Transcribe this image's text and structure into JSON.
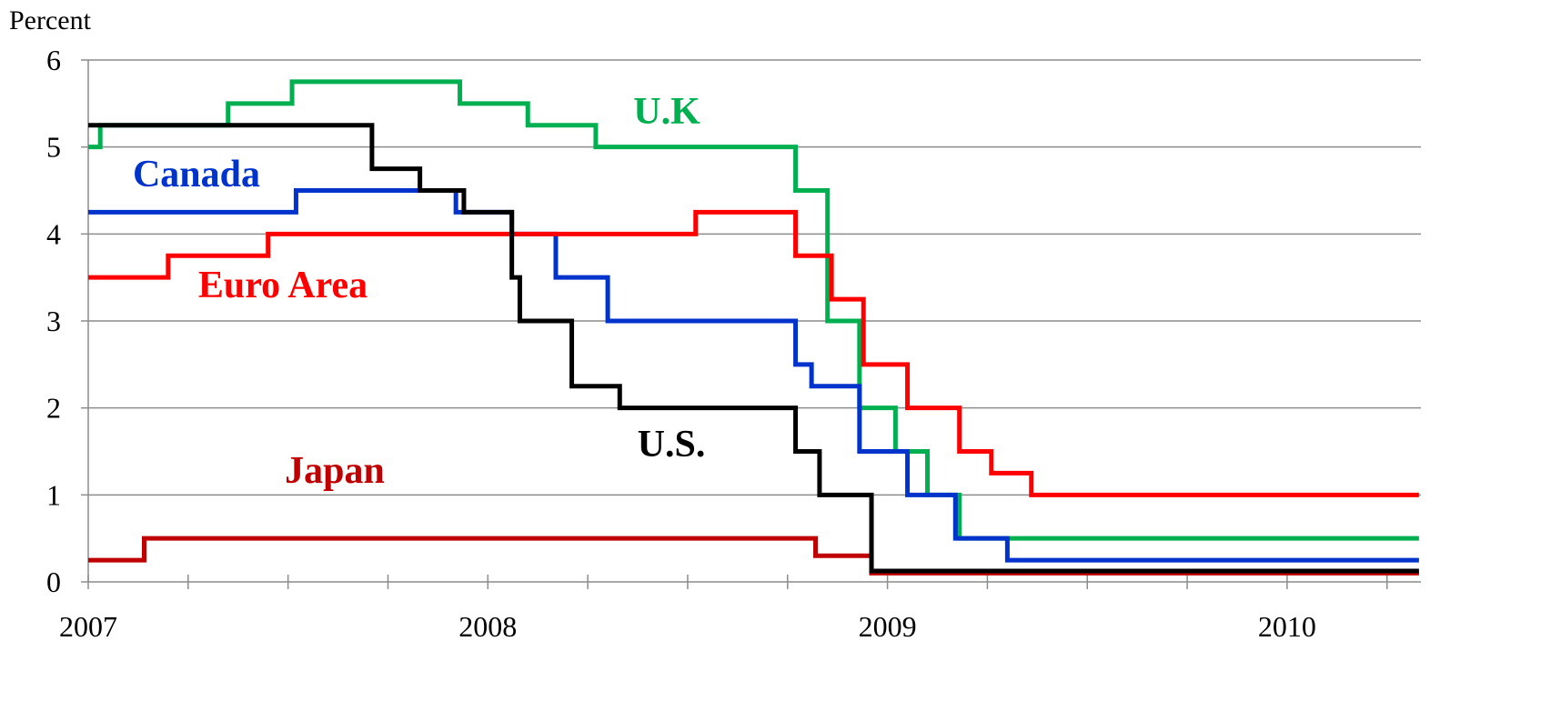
{
  "chart_data": {
    "type": "line",
    "title": "",
    "ylabel": "Percent",
    "xlabel": "",
    "ylim": [
      0,
      6
    ],
    "xlim": [
      2007,
      2010.33
    ],
    "y_ticks": [
      "0",
      "1",
      "2",
      "3",
      "4",
      "5",
      "6"
    ],
    "x_tick_labels": [
      "2007",
      "2008",
      "2009",
      "2010"
    ],
    "grid": "horizontal",
    "step": true,
    "series": [
      {
        "name": "U.S.",
        "color": "#000000",
        "points": [
          [
            2007.0,
            5.25
          ],
          [
            2007.71,
            4.75
          ],
          [
            2007.83,
            4.5
          ],
          [
            2007.94,
            4.25
          ],
          [
            2008.06,
            3.5
          ],
          [
            2008.08,
            3.0
          ],
          [
            2008.21,
            2.25
          ],
          [
            2008.33,
            2.0
          ],
          [
            2008.77,
            1.5
          ],
          [
            2008.83,
            1.0
          ],
          [
            2008.96,
            0.125
          ],
          [
            2010.33,
            0.125
          ]
        ]
      },
      {
        "name": "U.K",
        "color": "#00b050",
        "points": [
          [
            2007.0,
            5.0
          ],
          [
            2007.03,
            5.25
          ],
          [
            2007.35,
            5.5
          ],
          [
            2007.51,
            5.75
          ],
          [
            2007.93,
            5.5
          ],
          [
            2008.1,
            5.25
          ],
          [
            2008.27,
            5.0
          ],
          [
            2008.77,
            4.5
          ],
          [
            2008.85,
            3.0
          ],
          [
            2008.93,
            2.0
          ],
          [
            2009.02,
            1.5
          ],
          [
            2009.1,
            1.0
          ],
          [
            2009.18,
            0.5
          ],
          [
            2010.33,
            0.5
          ]
        ]
      },
      {
        "name": "Canada",
        "color": "#0033cc",
        "points": [
          [
            2007.0,
            4.25
          ],
          [
            2007.52,
            4.5
          ],
          [
            2007.92,
            4.25
          ],
          [
            2008.06,
            4.0
          ],
          [
            2008.17,
            3.5
          ],
          [
            2008.3,
            3.0
          ],
          [
            2008.77,
            2.5
          ],
          [
            2008.81,
            2.25
          ],
          [
            2008.93,
            1.5
          ],
          [
            2009.05,
            1.0
          ],
          [
            2009.17,
            0.5
          ],
          [
            2009.3,
            0.25
          ],
          [
            2010.33,
            0.25
          ]
        ]
      },
      {
        "name": "Euro Area",
        "color": "#ff0000",
        "points": [
          [
            2007.0,
            3.5
          ],
          [
            2007.2,
            3.75
          ],
          [
            2007.45,
            4.0
          ],
          [
            2008.52,
            4.25
          ],
          [
            2008.77,
            3.75
          ],
          [
            2008.86,
            3.25
          ],
          [
            2008.94,
            2.5
          ],
          [
            2009.05,
            2.0
          ],
          [
            2009.18,
            1.5
          ],
          [
            2009.26,
            1.25
          ],
          [
            2009.36,
            1.0
          ],
          [
            2010.33,
            1.0
          ]
        ]
      },
      {
        "name": "Japan",
        "color": "#c00000",
        "points": [
          [
            2007.0,
            0.25
          ],
          [
            2007.14,
            0.5
          ],
          [
            2008.82,
            0.3
          ],
          [
            2008.96,
            0.1
          ],
          [
            2010.33,
            0.1
          ]
        ]
      }
    ]
  }
}
